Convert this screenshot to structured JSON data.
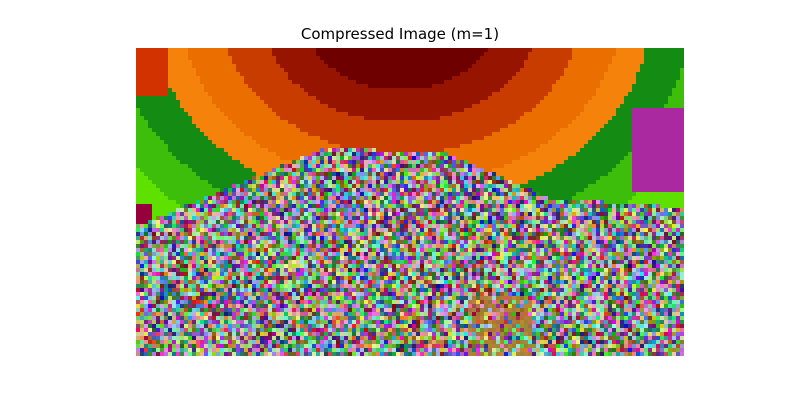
{
  "figure": {
    "title": "Compressed Image (m=1)"
  },
  "image": {
    "description_colors": {
      "sky_top": "#6e0000",
      "sky_mid": "#d04000",
      "sky_orange": "#f07800",
      "sky_green_dark": "#0e8a10",
      "sky_green_light": "#5ce000",
      "sky_magenta": "#b030a0"
    }
  }
}
